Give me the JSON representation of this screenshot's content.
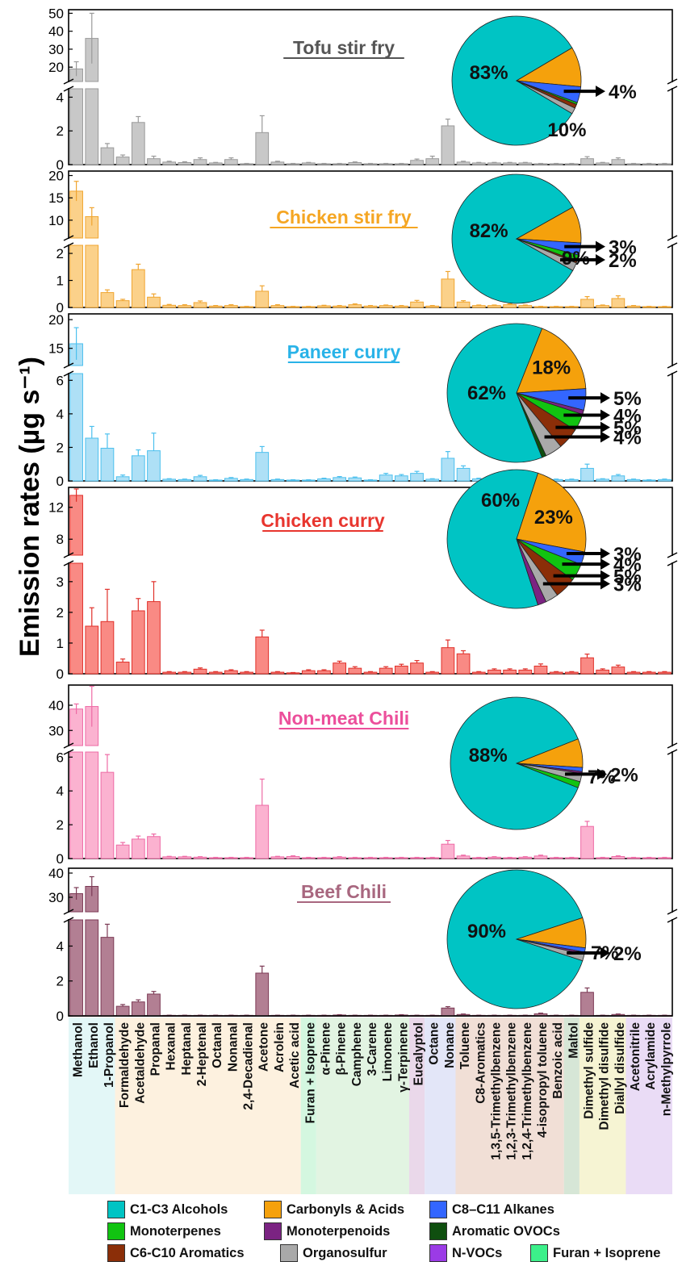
{
  "ylabel": "Emission rates (µg s⁻¹)",
  "compounds": [
    "Methanol",
    "Ethanol",
    "1-Propanol",
    "Formaldehyde",
    "Acetaldehyde",
    "Propanal",
    "Hexanal",
    "Heptanal",
    "2-Heptenal",
    "Octanal",
    "Nonanal",
    "2,4-Decadienal",
    "Acetone",
    "Acrolein",
    "Acetic acid",
    "Furan + Isoprene",
    "α-Pinene",
    "β-Pinene",
    "Camphene",
    "3-Carene",
    "Limonene",
    "γ-Terpinene",
    "Eucalyptol",
    "Octane",
    "Nonane",
    "Toluene",
    "C8-Aromatics",
    "1,3,5-Trimethylbenzene",
    "1,2,3-Trimethylbenzene",
    "1,2,4-Trimethylbenzene",
    "4-isopropyl toluene",
    "Benzoic acid",
    "Maltol",
    "Dimethyl sulfide",
    "Dimethyl disulfide",
    "Diallyl disulfide",
    "Acetonitrile",
    "Acrylamide",
    "n-Methylpyrrole"
  ],
  "groups": [
    {
      "key": "alcohols",
      "from": 0,
      "to": 2,
      "color": "#e3f7f7"
    },
    {
      "key": "carbonyls",
      "from": 3,
      "to": 14,
      "color": "#fdf1df"
    },
    {
      "key": "furan",
      "from": 15,
      "to": 15,
      "color": "#d4f7e0"
    },
    {
      "key": "monoterpenes",
      "from": 16,
      "to": 21,
      "color": "#e2f4e2"
    },
    {
      "key": "monoterpenoids",
      "from": 22,
      "to": 22,
      "color": "#ead8ea"
    },
    {
      "key": "alkanes",
      "from": 23,
      "to": 24,
      "color": "#e3e6f8"
    },
    {
      "key": "aromatics",
      "from": 25,
      "to": 31,
      "color": "#f1dfd6"
    },
    {
      "key": "aromatic_ovocs",
      "from": 32,
      "to": 32,
      "color": "#d6e6d6"
    },
    {
      "key": "organosulfur",
      "from": 33,
      "to": 35,
      "color": "#f6f4d3"
    },
    {
      "key": "nvocs",
      "from": 36,
      "to": 38,
      "color": "#eadcf6"
    }
  ],
  "legend": [
    {
      "label": "C1-C3 Alcohols",
      "color": "#00c4c4"
    },
    {
      "label": "Carbonyls & Acids",
      "color": "#f5a10c"
    },
    {
      "label": "C8–C11 Alkanes",
      "color": "#3366ff"
    },
    {
      "label": "Monoterpenes",
      "color": "#11c411"
    },
    {
      "label": "Monoterpenoids",
      "color": "#7b2382"
    },
    {
      "label": "Aromatic OVOCs",
      "color": "#0f4f0f"
    },
    {
      "label": "C6-C10 Aromatics",
      "color": "#8b2e08"
    },
    {
      "label": "Organosulfur",
      "color": "#a9a9a9"
    },
    {
      "label": "N-VOCs",
      "color": "#9b3be6"
    },
    {
      "label": "Furan + Isoprene",
      "color": "#3cf08a"
    }
  ],
  "chart_data": [
    {
      "type": "bar",
      "title": "Tofu stir fry",
      "title_color": "#555555",
      "bar_fill": "#c8c8c8",
      "bar_stroke": "#9a9a9a",
      "upper": {
        "ylim": [
          12,
          52
        ],
        "ticks": [
          20,
          30,
          40,
          50
        ]
      },
      "lower": {
        "ylim": [
          0,
          4.5
        ],
        "ticks": [
          0,
          2,
          4
        ]
      },
      "values": [
        19,
        36,
        1.0,
        0.45,
        2.5,
        0.35,
        0.15,
        0.12,
        0.3,
        0.1,
        0.3,
        0.05,
        1.9,
        0.15,
        0.05,
        0.1,
        0.05,
        0.05,
        0.12,
        0.05,
        0.05,
        0.05,
        0.25,
        0.35,
        2.3,
        0.15,
        0.1,
        0.1,
        0.1,
        0.1,
        0.05,
        0.05,
        0.05,
        0.35,
        0.1,
        0.3,
        0.05,
        0.05,
        0.05
      ],
      "errors": [
        4,
        14,
        0.25,
        0.12,
        0.35,
        0.15,
        0.05,
        0.05,
        0.1,
        0.03,
        0.1,
        0.02,
        1.0,
        0.05,
        0.02,
        0.03,
        0.02,
        0.02,
        0.04,
        0.02,
        0.02,
        0.02,
        0.08,
        0.15,
        0.4,
        0.05,
        0.03,
        0.03,
        0.03,
        0.03,
        0.02,
        0.02,
        0.02,
        0.12,
        0.03,
        0.1,
        0.02,
        0.02,
        0.02
      ],
      "pie": [
        {
          "group": "C1-C3 Alcohols",
          "value": 83,
          "label": "83%"
        },
        {
          "group": "Carbonyls & Acids",
          "value": 10,
          "label": "10%"
        },
        {
          "group": "C8–C11 Alkanes",
          "value": 4,
          "label": "4%"
        },
        {
          "group": "Monoterpenes",
          "value": 0.5
        },
        {
          "group": "C6-C10 Aromatics",
          "value": 1
        },
        {
          "group": "Organosulfur",
          "value": 1.5
        }
      ]
    },
    {
      "type": "bar",
      "title": "Chicken stir fry",
      "title_color": "#f5a623",
      "bar_fill": "#fbd18a",
      "bar_stroke": "#f0a530",
      "upper": {
        "ylim": [
          6,
          21
        ],
        "ticks": [
          10,
          15,
          20
        ]
      },
      "lower": {
        "ylim": [
          0,
          2.3
        ],
        "ticks": [
          0,
          1,
          2
        ]
      },
      "values": [
        16.5,
        10.8,
        0.55,
        0.25,
        1.4,
        0.38,
        0.08,
        0.07,
        0.18,
        0.05,
        0.07,
        0.03,
        0.6,
        0.07,
        0.03,
        0.03,
        0.06,
        0.05,
        0.1,
        0.05,
        0.07,
        0.05,
        0.2,
        0.05,
        1.05,
        0.2,
        0.07,
        0.07,
        0.1,
        0.07,
        0.03,
        0.03,
        0.03,
        0.3,
        0.07,
        0.33,
        0.05,
        0.03,
        0.03
      ],
      "errors": [
        2.2,
        2.0,
        0.1,
        0.05,
        0.2,
        0.12,
        0.03,
        0.03,
        0.06,
        0.02,
        0.03,
        0.01,
        0.2,
        0.03,
        0.01,
        0.01,
        0.02,
        0.02,
        0.03,
        0.02,
        0.02,
        0.02,
        0.06,
        0.02,
        0.28,
        0.05,
        0.02,
        0.02,
        0.03,
        0.02,
        0.01,
        0.01,
        0.01,
        0.1,
        0.02,
        0.1,
        0.02,
        0.01,
        0.01
      ],
      "pie": [
        {
          "group": "C1-C3 Alcohols",
          "value": 82,
          "label": "82%"
        },
        {
          "group": "Carbonyls & Acids",
          "value": 9,
          "label": "9%"
        },
        {
          "group": "C8–C11 Alkanes",
          "value": 3,
          "label": "3%"
        },
        {
          "group": "Monoterpenes",
          "value": 1.5
        },
        {
          "group": "C6-C10 Aromatics",
          "value": 0.5
        },
        {
          "group": "Organosulfur",
          "value": 2,
          "label": "2%"
        }
      ]
    },
    {
      "type": "bar",
      "title": "Paneer curry",
      "title_color": "#29b3e8",
      "bar_fill": "#aee0f6",
      "bar_stroke": "#4cc0ee",
      "upper": {
        "ylim": [
          12,
          21
        ],
        "ticks": [
          15,
          20
        ]
      },
      "lower": {
        "ylim": [
          0,
          6.4
        ],
        "ticks": [
          0,
          2,
          4,
          6
        ]
      },
      "values": [
        15.8,
        2.55,
        1.95,
        0.25,
        1.5,
        1.8,
        0.1,
        0.08,
        0.25,
        0.05,
        0.15,
        0.08,
        1.7,
        0.08,
        0.05,
        0.05,
        0.12,
        0.2,
        0.18,
        0.05,
        0.35,
        0.3,
        0.45,
        0.1,
        1.35,
        0.75,
        0.12,
        0.15,
        0.12,
        0.15,
        0.25,
        0.08,
        0.08,
        0.75,
        0.1,
        0.3,
        0.08,
        0.05,
        0.08
      ],
      "errors": [
        2.8,
        0.7,
        0.85,
        0.1,
        0.35,
        1.05,
        0.03,
        0.03,
        0.08,
        0.02,
        0.05,
        0.03,
        0.35,
        0.03,
        0.02,
        0.02,
        0.04,
        0.06,
        0.05,
        0.02,
        0.1,
        0.08,
        0.12,
        0.03,
        0.4,
        0.15,
        0.04,
        0.04,
        0.04,
        0.05,
        0.08,
        0.03,
        0.03,
        0.25,
        0.03,
        0.08,
        0.03,
        0.02,
        0.03
      ],
      "pie": [
        {
          "group": "C1-C3 Alcohols",
          "value": 62,
          "label": "62%"
        },
        {
          "group": "Carbonyls & Acids",
          "value": 18,
          "label": "18%"
        },
        {
          "group": "C8–C11 Alkanes",
          "value": 5,
          "label": "5%"
        },
        {
          "group": "Monoterpenoids",
          "value": 1
        },
        {
          "group": "Monoterpenes",
          "value": 4,
          "label": "4%"
        },
        {
          "group": "C6-C10 Aromatics",
          "value": 5,
          "label": "5%"
        },
        {
          "group": "Organosulfur",
          "value": 4,
          "label": "4%"
        },
        {
          "group": "Aromatic OVOCs",
          "value": 1
        }
      ]
    },
    {
      "type": "bar",
      "title": "Chicken curry",
      "title_color": "#e8352e",
      "bar_fill": "#f98a84",
      "bar_stroke": "#e0302a",
      "upper": {
        "ylim": [
          6,
          14.5
        ],
        "ticks": [
          8,
          12
        ]
      },
      "lower": {
        "ylim": [
          0,
          3.6
        ],
        "ticks": [
          0,
          1,
          2,
          3
        ]
      },
      "values": [
        13.5,
        1.55,
        1.7,
        0.38,
        2.05,
        2.35,
        0.05,
        0.05,
        0.15,
        0.05,
        0.1,
        0.05,
        1.2,
        0.05,
        0.03,
        0.1,
        0.1,
        0.35,
        0.18,
        0.05,
        0.18,
        0.25,
        0.35,
        0.05,
        0.85,
        0.65,
        0.05,
        0.12,
        0.12,
        0.12,
        0.25,
        0.05,
        0.05,
        0.52,
        0.12,
        0.22,
        0.05,
        0.05,
        0.05
      ],
      "errors": [
        0.8,
        0.6,
        1.05,
        0.1,
        0.4,
        0.65,
        0.02,
        0.02,
        0.04,
        0.02,
        0.03,
        0.02,
        0.22,
        0.02,
        0.01,
        0.03,
        0.03,
        0.06,
        0.05,
        0.02,
        0.05,
        0.06,
        0.08,
        0.02,
        0.25,
        0.1,
        0.02,
        0.04,
        0.04,
        0.04,
        0.07,
        0.02,
        0.02,
        0.12,
        0.04,
        0.06,
        0.02,
        0.02,
        0.02
      ],
      "pie": [
        {
          "group": "C1-C3 Alcohols",
          "value": 60,
          "label": "60%"
        },
        {
          "group": "Carbonyls & Acids",
          "value": 23,
          "label": "23%"
        },
        {
          "group": "C8–C11 Alkanes",
          "value": 3,
          "label": "3%"
        },
        {
          "group": "Monoterpenes",
          "value": 4,
          "label": "4%"
        },
        {
          "group": "C6-C10 Aromatics",
          "value": 5,
          "label": "5%"
        },
        {
          "group": "Organosulfur",
          "value": 3,
          "label": "3%"
        },
        {
          "group": "Monoterpenoids",
          "value": 2
        }
      ]
    },
    {
      "type": "bar",
      "title": "Non-meat Chili",
      "title_color": "#ec4f9b",
      "bar_fill": "#fbb2d0",
      "bar_stroke": "#ee6aa5",
      "upper": {
        "ylim": [
          24,
          48
        ],
        "ticks": [
          30,
          40
        ]
      },
      "lower": {
        "ylim": [
          0,
          6.3
        ],
        "ticks": [
          0,
          2,
          4,
          6
        ]
      },
      "values": [
        38.5,
        39.5,
        5.1,
        0.8,
        1.15,
        1.3,
        0.1,
        0.1,
        0.08,
        0.05,
        0.05,
        0.05,
        3.15,
        0.1,
        0.12,
        0.05,
        0.05,
        0.08,
        0.05,
        0.05,
        0.05,
        0.05,
        0.05,
        0.05,
        0.85,
        0.15,
        0.05,
        0.08,
        0.05,
        0.08,
        0.15,
        0.05,
        0.05,
        1.9,
        0.05,
        0.12,
        0.05,
        0.05,
        0.05
      ],
      "errors": [
        2,
        8,
        1.05,
        0.15,
        0.18,
        0.15,
        0.03,
        0.03,
        0.03,
        0.02,
        0.02,
        0.02,
        1.55,
        0.03,
        0.04,
        0.02,
        0.02,
        0.03,
        0.02,
        0.02,
        0.02,
        0.02,
        0.02,
        0.02,
        0.22,
        0.05,
        0.02,
        0.03,
        0.02,
        0.03,
        0.05,
        0.02,
        0.02,
        0.3,
        0.02,
        0.04,
        0.02,
        0.02,
        0.02
      ],
      "pie": [
        {
          "group": "C1-C3 Alcohols",
          "value": 88,
          "label": "88%"
        },
        {
          "group": "Carbonyls & Acids",
          "value": 7,
          "label": "7%"
        },
        {
          "group": "C8–C11 Alkanes",
          "value": 1
        },
        {
          "group": "Monoterpenoids",
          "value": 0.5
        },
        {
          "group": "Organosulfur",
          "value": 2,
          "label": "2%"
        },
        {
          "group": "Monoterpenes",
          "value": 1.5
        }
      ]
    },
    {
      "type": "bar",
      "title": "Beef Chili",
      "title_color": "#a8677f",
      "bar_fill": "#b27f93",
      "bar_stroke": "#7c3a55",
      "upper": {
        "ylim": [
          24,
          42
        ],
        "ticks": [
          30,
          40
        ]
      },
      "lower": {
        "ylim": [
          0,
          5.5
        ],
        "ticks": [
          0,
          2,
          4
        ]
      },
      "values": [
        31.5,
        34.5,
        4.5,
        0.55,
        0.8,
        1.25,
        0.03,
        0.03,
        0.03,
        0.03,
        0.03,
        0.03,
        2.45,
        0.03,
        0.03,
        0.03,
        0.03,
        0.05,
        0.03,
        0.03,
        0.03,
        0.05,
        0.03,
        0.03,
        0.45,
        0.08,
        0.03,
        0.03,
        0.03,
        0.03,
        0.12,
        0.03,
        0.03,
        1.35,
        0.03,
        0.08,
        0.03,
        0.03,
        0.03
      ],
      "errors": [
        2.5,
        4,
        0.75,
        0.1,
        0.12,
        0.15,
        0.01,
        0.01,
        0.01,
        0.01,
        0.01,
        0.01,
        0.4,
        0.01,
        0.01,
        0.01,
        0.01,
        0.02,
        0.01,
        0.01,
        0.01,
        0.02,
        0.01,
        0.01,
        0.08,
        0.03,
        0.01,
        0.01,
        0.01,
        0.01,
        0.04,
        0.01,
        0.01,
        0.25,
        0.01,
        0.03,
        0.01,
        0.01,
        0.01
      ],
      "pie": [
        {
          "group": "C1-C3 Alcohols",
          "value": 90,
          "label": "90%"
        },
        {
          "group": "Carbonyls & Acids",
          "value": 7,
          "label": "7%"
        },
        {
          "group": "C8–C11 Alkanes",
          "value": 1
        },
        {
          "group": "Monoterpenoids",
          "value": 0.5
        },
        {
          "group": "Organosulfur",
          "value": 1.5,
          "label": "2%"
        }
      ]
    }
  ]
}
